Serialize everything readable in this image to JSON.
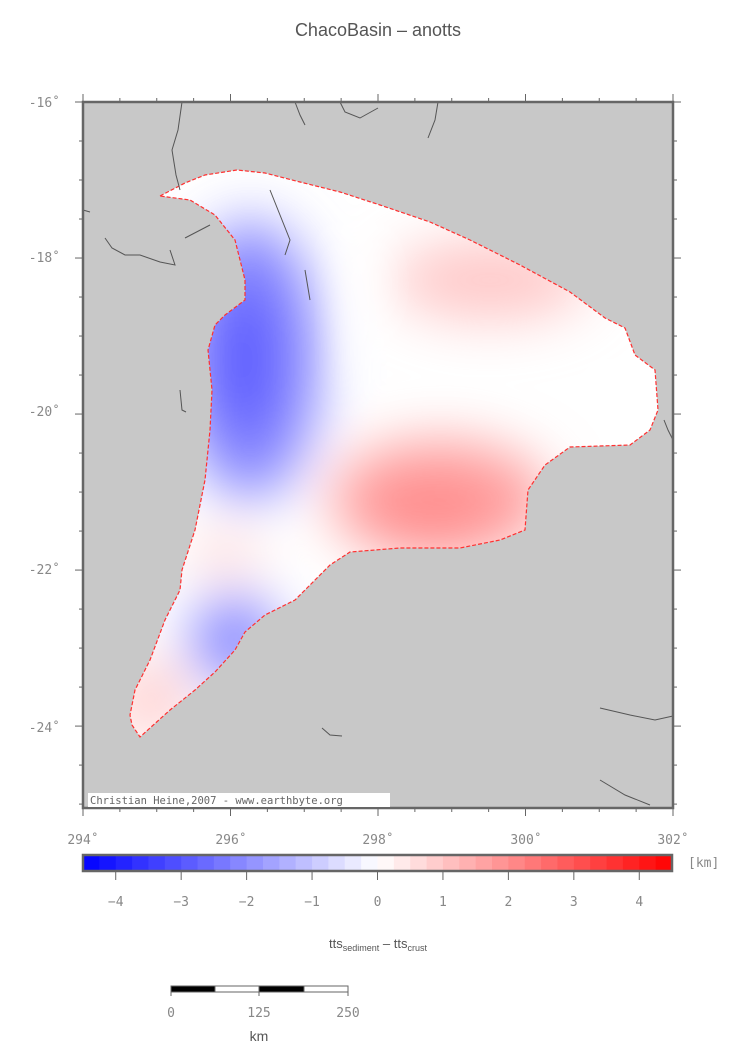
{
  "title": "ChacoBasin – anotts",
  "credit": "Christian Heine,2007 - www.earthbyte.org",
  "map": {
    "lon_range": [
      294,
      302
    ],
    "lat_range": [
      -25,
      -16
    ],
    "lon_ticks": [
      "294˚",
      "296˚",
      "298˚",
      "300˚",
      "302˚"
    ],
    "lat_ticks": [
      "-16˚",
      "-18˚",
      "-20˚",
      "-22˚",
      "-24˚"
    ],
    "background_color": "#c8c8c8",
    "outline_color": "#ff3030"
  },
  "colorbar": {
    "range": [
      -4.5,
      4.5
    ],
    "step": 0.25,
    "ticks": [
      "-4",
      "-3",
      "-2",
      "-1",
      "0",
      "1",
      "2",
      "3",
      "4"
    ],
    "unit": "[km]",
    "label_main": "tts",
    "label_sub1": "sediment",
    "label_mid": " – tts",
    "label_sub2": "crust",
    "low_color": "#0000ff",
    "mid_color": "#ffffff",
    "high_color": "#ff0000"
  },
  "scalebar": {
    "ticks": [
      "0",
      "125",
      "250"
    ],
    "unit": "km"
  }
}
